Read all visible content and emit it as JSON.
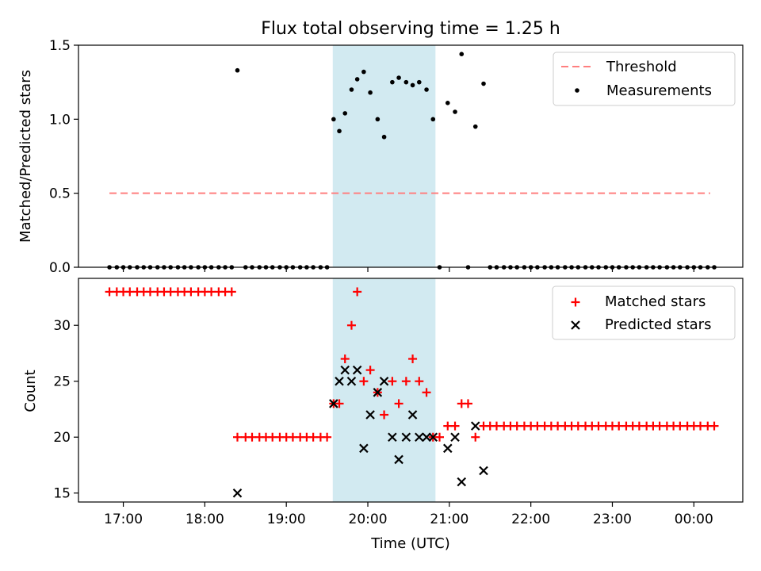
{
  "title": "Flux total observing time = 1.25 h",
  "chart_data": [
    {
      "type": "scatter",
      "panel": "top",
      "title": "Flux total observing time = 1.25 h",
      "xlabel": "",
      "ylabel": "Matched/Predicted stars",
      "xlim": [
        16.45,
        24.6
      ],
      "ylim": [
        0,
        1.5
      ],
      "yticks": [
        0.0,
        0.5,
        1.0,
        1.5
      ],
      "ytick_labels": [
        "0.0",
        "0.5",
        "1.0",
        "1.5"
      ],
      "legend": {
        "placement": "top-right",
        "entries": [
          "Threshold",
          "Measurements"
        ]
      },
      "shaded_interval": {
        "x": [
          19.57,
          20.83
        ],
        "color": "#add8e6"
      },
      "threshold": {
        "name": "Threshold",
        "y": 0.5,
        "x": [
          16.83,
          24.2
        ],
        "color": "#ff7f7f"
      },
      "series": [
        {
          "name": "Measurements",
          "color": "#000000",
          "x": [
            16.83,
            16.92,
            17.0,
            17.08,
            17.17,
            17.25,
            17.33,
            17.42,
            17.5,
            17.58,
            17.67,
            17.75,
            17.83,
            17.92,
            18.0,
            18.08,
            18.17,
            18.25,
            18.33,
            18.4,
            18.5,
            18.58,
            18.67,
            18.75,
            18.83,
            18.92,
            19.0,
            19.08,
            19.17,
            19.25,
            19.33,
            19.42,
            19.5,
            19.58,
            19.65,
            19.72,
            19.8,
            19.87,
            19.95,
            20.03,
            20.12,
            20.2,
            20.3,
            20.38,
            20.47,
            20.55,
            20.63,
            20.72,
            20.8,
            20.88,
            20.98,
            21.07,
            21.15,
            21.23,
            21.32,
            21.42,
            21.5,
            21.58,
            21.67,
            21.75,
            21.83,
            21.92,
            22.0,
            22.08,
            22.17,
            22.25,
            22.33,
            22.42,
            22.5,
            22.58,
            22.67,
            22.75,
            22.83,
            22.92,
            23.0,
            23.08,
            23.17,
            23.25,
            23.33,
            23.42,
            23.5,
            23.58,
            23.67,
            23.75,
            23.83,
            23.92,
            24.0,
            24.08,
            24.17,
            24.25
          ],
          "y": [
            0,
            0,
            0,
            0,
            0,
            0,
            0,
            0,
            0,
            0,
            0,
            0,
            0,
            0,
            0,
            0,
            0,
            0,
            0,
            1.33,
            0,
            0,
            0,
            0,
            0,
            0,
            0,
            0,
            0,
            0,
            0,
            0,
            0,
            1.0,
            0.92,
            1.04,
            1.2,
            1.27,
            1.32,
            1.18,
            1.0,
            0.88,
            1.25,
            1.28,
            1.25,
            1.23,
            1.25,
            1.2,
            1.0,
            0,
            1.11,
            1.05,
            1.44,
            0,
            0.95,
            1.24,
            0,
            0,
            0,
            0,
            0,
            0,
            0,
            0,
            0,
            0,
            0,
            0,
            0,
            0,
            0,
            0,
            0,
            0,
            0,
            0,
            0,
            0,
            0,
            0,
            0,
            0,
            0,
            0,
            0,
            0,
            0,
            0,
            0,
            0
          ]
        }
      ]
    },
    {
      "type": "scatter",
      "panel": "bottom",
      "xlabel": "Time (UTC)",
      "ylabel": "Count",
      "xlim": [
        16.45,
        24.6
      ],
      "ylim": [
        14.2,
        34.2
      ],
      "yticks": [
        15,
        20,
        25,
        30
      ],
      "ytick_labels": [
        "15",
        "20",
        "25",
        "30"
      ],
      "xticks": [
        17,
        18,
        19,
        20,
        21,
        22,
        23,
        24
      ],
      "xtick_labels": [
        "17:00",
        "18:00",
        "19:00",
        "20:00",
        "21:00",
        "22:00",
        "23:00",
        "00:00"
      ],
      "legend": {
        "placement": "top-right",
        "entries": [
          "Matched stars",
          "Predicted stars"
        ]
      },
      "shaded_interval": {
        "x": [
          19.57,
          20.83
        ],
        "color": "#add8e6"
      },
      "series": [
        {
          "name": "Matched stars",
          "marker": "plus",
          "color": "#ff0000",
          "x": [
            16.83,
            16.92,
            17.0,
            17.08,
            17.17,
            17.25,
            17.33,
            17.42,
            17.5,
            17.58,
            17.67,
            17.75,
            17.83,
            17.92,
            18.0,
            18.08,
            18.17,
            18.25,
            18.33,
            18.4,
            18.5,
            18.58,
            18.67,
            18.75,
            18.83,
            18.92,
            19.0,
            19.08,
            19.17,
            19.25,
            19.33,
            19.42,
            19.5,
            19.58,
            19.65,
            19.72,
            19.8,
            19.87,
            19.95,
            20.03,
            20.12,
            20.2,
            20.3,
            20.38,
            20.47,
            20.55,
            20.63,
            20.72,
            20.8,
            20.88,
            20.98,
            21.07,
            21.15,
            21.23,
            21.32,
            21.42,
            21.5,
            21.58,
            21.67,
            21.75,
            21.83,
            21.92,
            22.0,
            22.08,
            22.17,
            22.25,
            22.33,
            22.42,
            22.5,
            22.58,
            22.67,
            22.75,
            22.83,
            22.92,
            23.0,
            23.08,
            23.17,
            23.25,
            23.33,
            23.42,
            23.5,
            23.58,
            23.67,
            23.75,
            23.83,
            23.92,
            24.0,
            24.08,
            24.17,
            24.25
          ],
          "y": [
            33,
            33,
            33,
            33,
            33,
            33,
            33,
            33,
            33,
            33,
            33,
            33,
            33,
            33,
            33,
            33,
            33,
            33,
            33,
            20,
            20,
            20,
            20,
            20,
            20,
            20,
            20,
            20,
            20,
            20,
            20,
            20,
            20,
            23,
            23,
            27,
            30,
            33,
            25,
            26,
            24,
            22,
            25,
            23,
            25,
            27,
            25,
            24,
            20,
            20,
            21,
            21,
            23,
            23,
            20,
            21,
            21,
            21,
            21,
            21,
            21,
            21,
            21,
            21,
            21,
            21,
            21,
            21,
            21,
            21,
            21,
            21,
            21,
            21,
            21,
            21,
            21,
            21,
            21,
            21,
            21,
            21,
            21,
            21,
            21,
            21,
            21,
            21,
            21,
            21
          ]
        },
        {
          "name": "Predicted stars",
          "marker": "x",
          "color": "#000000",
          "x": [
            18.4,
            19.58,
            19.65,
            19.72,
            19.8,
            19.87,
            19.95,
            20.03,
            20.12,
            20.2,
            20.3,
            20.38,
            20.47,
            20.55,
            20.63,
            20.72,
            20.8,
            20.98,
            21.07,
            21.15,
            21.32,
            21.42
          ],
          "y": [
            15,
            23,
            25,
            26,
            25,
            26,
            19,
            22,
            24,
            25,
            20,
            18,
            20,
            22,
            20,
            20,
            20,
            19,
            20,
            16,
            21,
            17
          ]
        }
      ]
    }
  ]
}
